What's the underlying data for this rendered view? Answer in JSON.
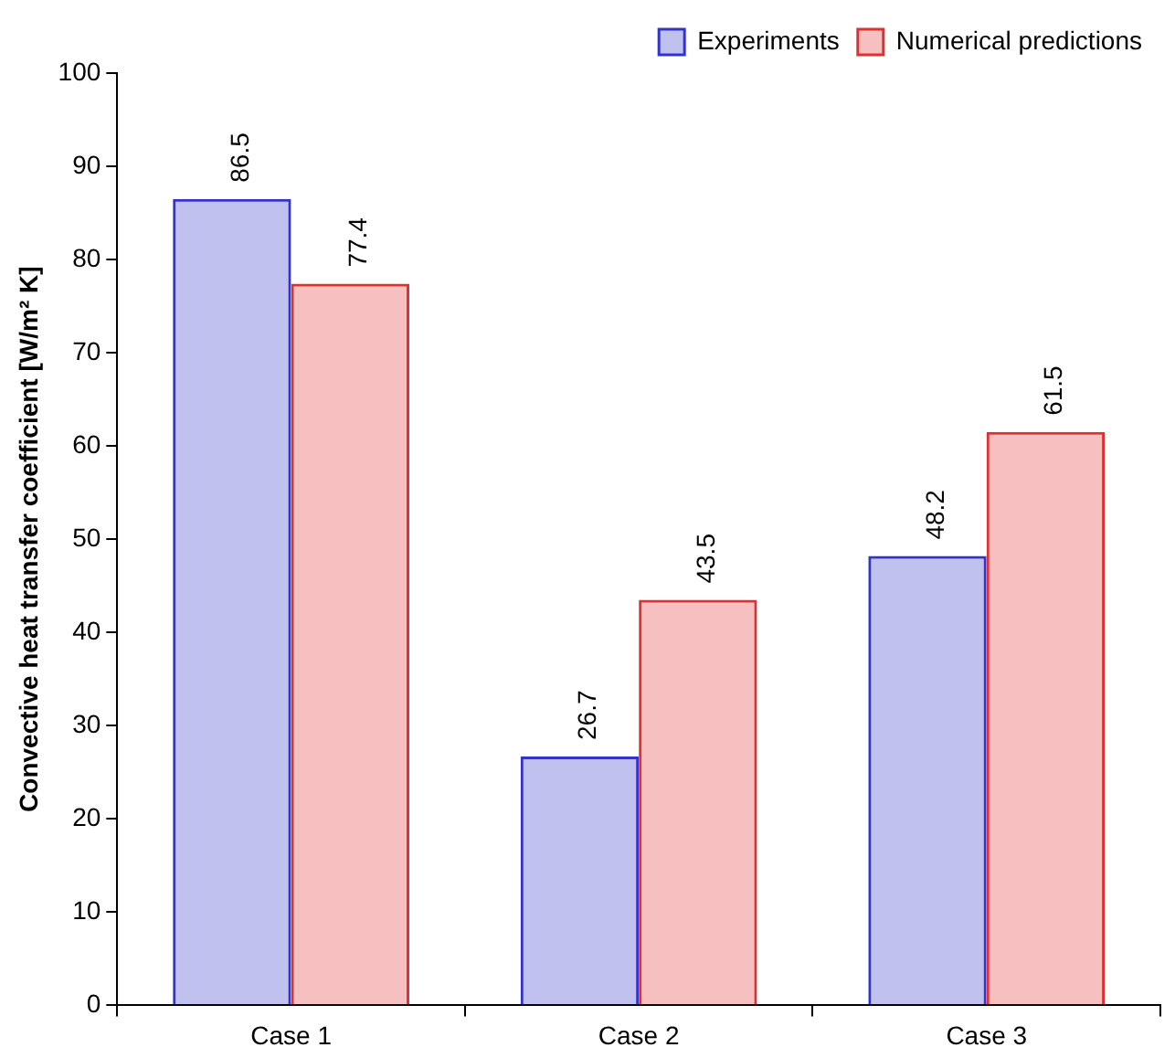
{
  "chart_data": {
    "type": "bar",
    "ylabel": "Convective heat transfer coefficient [W/m² K]",
    "categories": [
      "Case 1",
      "Case 2",
      "Case 3"
    ],
    "series": [
      {
        "name": "Experiments",
        "color": "#3333cc",
        "values": [
          86.5,
          26.7,
          48.2
        ]
      },
      {
        "name": "Numerical predictions",
        "color": "#e03030",
        "values": [
          77.4,
          43.5,
          61.5
        ]
      }
    ],
    "ylim": [
      0,
      100
    ],
    "yticks": [
      0,
      10,
      20,
      30,
      40,
      50,
      60,
      70,
      80,
      90,
      100
    ],
    "grid": false,
    "legend": "top right",
    "data_labels": true
  }
}
